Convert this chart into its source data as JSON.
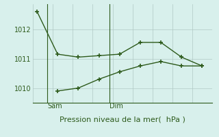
{
  "line1_x": [
    0,
    1,
    2,
    3,
    4,
    5,
    6,
    7,
    8
  ],
  "line1_y": [
    1012.6,
    1011.15,
    1011.05,
    1011.1,
    1011.15,
    1011.55,
    1011.55,
    1011.05,
    1010.75
  ],
  "line2_x": [
    1,
    2,
    3,
    4,
    5,
    6,
    7,
    8
  ],
  "line2_y": [
    1009.9,
    1010.0,
    1010.3,
    1010.55,
    1010.75,
    1010.9,
    1010.75,
    1010.75
  ],
  "color": "#2d5a1b",
  "bg_color": "#d8f0ec",
  "grid_color": "#b0c8c4",
  "ylim": [
    1009.5,
    1012.85
  ],
  "yticks": [
    1010,
    1011,
    1012
  ],
  "sam_vline_x": 0.5,
  "dim_vline_x": 3.5,
  "sam_label": "Sam",
  "dim_label": "Dim",
  "xlabel": "Pression niveau de la mer(  hPa )",
  "xlabel_fontsize": 8,
  "ytick_fontsize": 7,
  "xtick_fontsize": 7,
  "marker": "+",
  "linewidth": 1.0,
  "markersize": 4,
  "xlim": [
    -0.2,
    8.5
  ]
}
